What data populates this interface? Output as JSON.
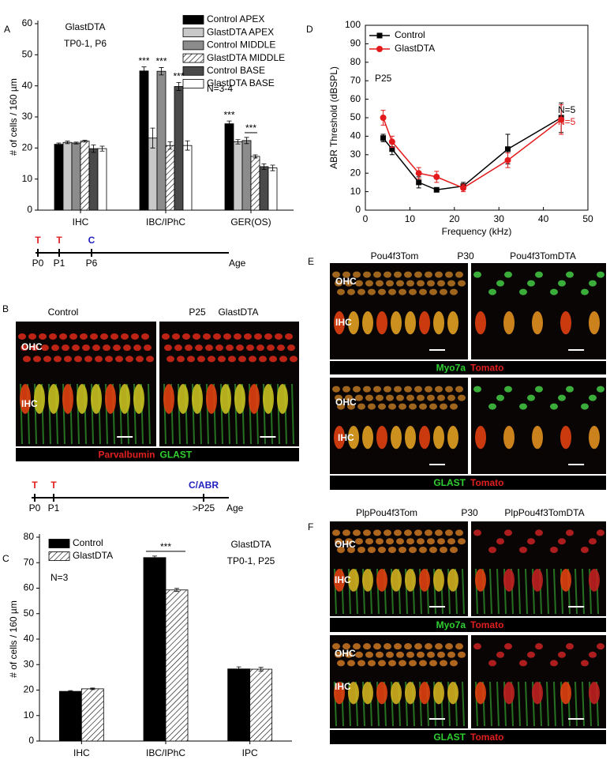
{
  "chart_data": [
    {
      "type": "bar",
      "title": "GlastDTA",
      "subtitle": "TP0-1, P6",
      "ylabel": "# of cells / 160 µm",
      "categories": [
        "IHC",
        "IBC/IPhC",
        "GER(OS)"
      ],
      "series": [
        {
          "name": "Control APEX",
          "color": "#000000",
          "values": [
            21.2,
            44.8,
            27.8
          ],
          "errors": [
            0.4,
            1.3,
            0.9
          ]
        },
        {
          "name": "GlastDTA APEX",
          "color": "#c8c8c8",
          "values": [
            21.8,
            23.2,
            22.0
          ],
          "errors": [
            0.4,
            3.2,
            0.7
          ]
        },
        {
          "name": "Control MIDDLE",
          "color": "#8c8c8c",
          "values": [
            21.6,
            44.7,
            22.4
          ],
          "errors": [
            0.3,
            1.2,
            1.0
          ]
        },
        {
          "name": "GlastDTA MIDDLE",
          "color": "#ffffff",
          "hatch": true,
          "values": [
            22.2,
            20.8,
            17.3
          ],
          "errors": [
            0.3,
            1.2,
            0.5
          ]
        },
        {
          "name": "Control BASE",
          "color": "#4a4a4a",
          "values": [
            19.8,
            39.8,
            14.0
          ],
          "errors": [
            1.2,
            1.3,
            0.9
          ]
        },
        {
          "name": "GlastDTA BASE",
          "color": "#ffffff",
          "values": [
            19.8,
            20.8,
            13.6
          ],
          "errors": [
            0.8,
            1.5,
            0.9
          ]
        }
      ],
      "ylim": [
        0,
        60
      ],
      "yticks": [
        0,
        10,
        20,
        30,
        40,
        50,
        60
      ],
      "legend": "upper right",
      "annotations": [
        "N=3-4"
      ],
      "significance": [
        "***",
        "***",
        "***",
        "***",
        "***"
      ]
    },
    {
      "type": "bar",
      "title": "GlastDTA",
      "subtitle": "TP0-1, P25",
      "ylabel": "# of cells / 160 µm",
      "categories": [
        "IHC",
        "IBC/IPhC",
        "IPC"
      ],
      "series": [
        {
          "name": "Control",
          "color": "#000000",
          "values": [
            19.5,
            72.0,
            28.3
          ],
          "errors": [
            0.3,
            0.6,
            0.8
          ]
        },
        {
          "name": "GlastDTA",
          "color": "#ffffff",
          "hatch": true,
          "values": [
            20.5,
            59.3,
            28.2
          ],
          "errors": [
            0.3,
            0.6,
            0.7
          ]
        }
      ],
      "ylim": [
        0,
        80
      ],
      "yticks": [
        0,
        10,
        20,
        30,
        40,
        50,
        60,
        70,
        80
      ],
      "legend": "upper left",
      "annotations": [
        "N=3"
      ],
      "significance": [
        "***"
      ]
    },
    {
      "type": "line",
      "xlabel": "Frequency (kHz)",
      "ylabel": "ABR Threshold (dBSPL)",
      "x": [
        4,
        6,
        12,
        16,
        22,
        32,
        44
      ],
      "series": [
        {
          "name": "Control",
          "color": "#000000",
          "marker": "square",
          "values": [
            39,
            33,
            15,
            11,
            13,
            33,
            50
          ],
          "errors": [
            2,
            3,
            3,
            1,
            2,
            8,
            8
          ]
        },
        {
          "name": "GlastDTA",
          "color": "#e31a1c",
          "marker": "circle",
          "values": [
            50,
            37,
            20,
            18,
            12,
            27,
            49
          ],
          "errors": [
            4,
            3,
            3,
            3,
            2,
            4,
            8
          ]
        }
      ],
      "xlim": [
        0,
        50
      ],
      "xticks": [
        0,
        10,
        20,
        30,
        40,
        50
      ],
      "ylim": [
        0,
        100
      ],
      "yticks": [
        0,
        10,
        20,
        30,
        40,
        50,
        60,
        70,
        80,
        90,
        100
      ],
      "legend": "upper left",
      "annotations": [
        {
          "text": "P25",
          "color": "#000000"
        },
        {
          "text": "N=5",
          "color": "#000000"
        },
        {
          "text": "N=5",
          "color": "#e31a1c"
        }
      ]
    }
  ],
  "panel_labels": [
    "A",
    "B",
    "C",
    "D",
    "E",
    "F"
  ],
  "timelines": [
    {
      "treatments": [
        {
          "text": "T",
          "color": "#e02020"
        },
        {
          "text": "T",
          "color": "#e02020"
        },
        {
          "text": "C",
          "color": "#2020c0"
        }
      ],
      "times": [
        "P0",
        "P1",
        "P6"
      ],
      "axis": "Age"
    },
    {
      "treatments": [
        {
          "text": "T",
          "color": "#e02020"
        },
        {
          "text": "T",
          "color": "#e02020"
        },
        {
          "text": "C/ABR",
          "color": "#2020c0"
        }
      ],
      "times": [
        "P0",
        "P1",
        ">P25"
      ],
      "axis": "Age"
    }
  ],
  "image_panels": [
    {
      "headers": [
        "Control",
        "P25",
        "GlastDTA"
      ],
      "rows": [
        {
          "regions": [
            "OHC",
            "IHC"
          ],
          "stains": [
            {
              "text": "Parvalbumin",
              "color": "#e02020"
            },
            {
              "text": "GLAST",
              "color": "#30d030"
            }
          ]
        }
      ]
    },
    {
      "headers": [
        "Pou4f3Tom",
        "P30",
        "Pou4f3TomDTA"
      ],
      "rows": [
        {
          "regions": [
            "OHC",
            "IHC"
          ],
          "stains": [
            {
              "text": "Myo7a",
              "color": "#30d030"
            },
            {
              "text": "Tomato",
              "color": "#e02020"
            }
          ]
        },
        {
          "regions": [
            "OHC",
            "IHC"
          ],
          "stains": [
            {
              "text": "GLAST",
              "color": "#30d030"
            },
            {
              "text": "Tomato",
              "color": "#e02020"
            }
          ]
        }
      ]
    },
    {
      "headers": [
        "PlpPou4f3Tom",
        "P30",
        "PlpPou4f3TomDTA"
      ],
      "rows": [
        {
          "regions": [
            "OHC",
            "IHC"
          ],
          "stains": [
            {
              "text": "Myo7a",
              "color": "#30d030"
            },
            {
              "text": "Tomato",
              "color": "#e02020"
            }
          ]
        },
        {
          "regions": [
            "OHC",
            "IHC"
          ],
          "stains": [
            {
              "text": "GLAST",
              "color": "#30d030"
            },
            {
              "text": "Tomato",
              "color": "#e02020"
            }
          ]
        }
      ]
    }
  ]
}
